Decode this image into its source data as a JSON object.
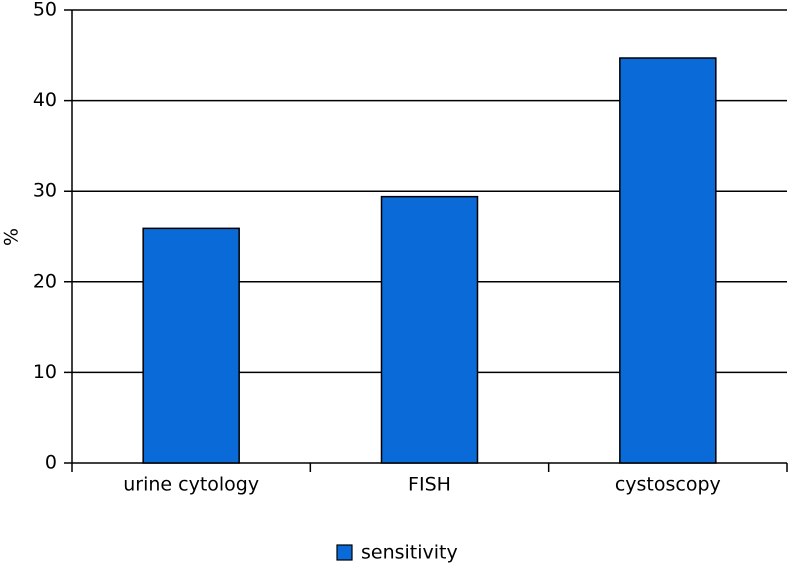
{
  "chart_data": {
    "type": "bar",
    "y_label": "%",
    "categories": [
      "urine cytology",
      "FISH",
      "cystoscopy"
    ],
    "series": [
      {
        "name": "sensitivity",
        "color": "#0a6ad8",
        "values": [
          25.9,
          29.4,
          44.7
        ]
      }
    ],
    "ylim": [
      0,
      50
    ],
    "yticks": [
      0,
      10,
      20,
      30,
      40,
      50
    ],
    "grid": true,
    "legend": "bottom"
  }
}
